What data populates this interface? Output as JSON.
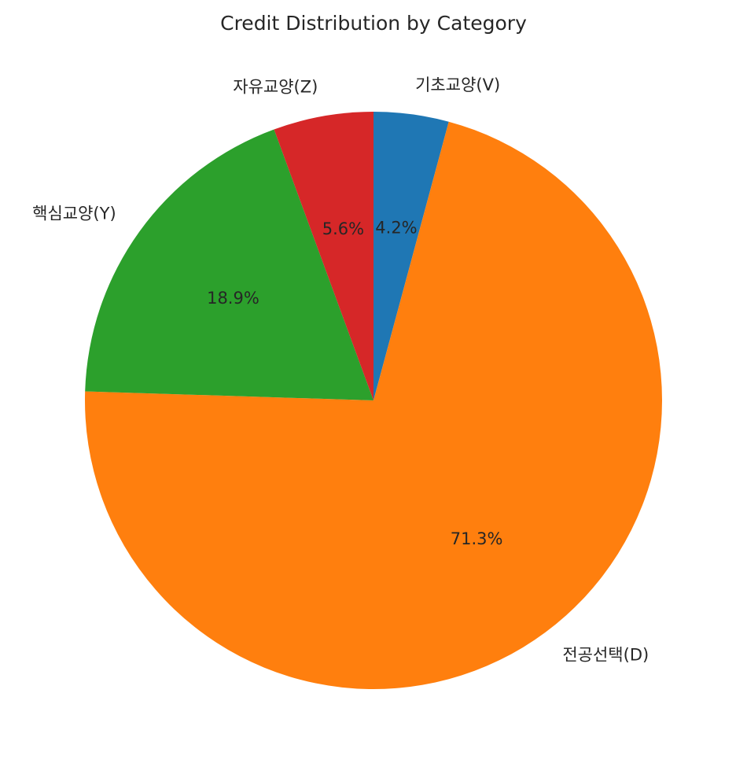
{
  "chart_data": {
    "type": "pie",
    "title": "Credit Distribution by Category",
    "start_angle_deg": 90,
    "direction": "clockwise",
    "slices": [
      {
        "label": "기초교양(V)",
        "value": 4.2,
        "pct_label": "4.2%",
        "color": "#1f77b4"
      },
      {
        "label": "전공선택(D)",
        "value": 71.3,
        "pct_label": "71.3%",
        "color": "#ff7f0e"
      },
      {
        "label": "핵심교양(Y)",
        "value": 18.9,
        "pct_label": "18.9%",
        "color": "#2ca02c"
      },
      {
        "label": "자유교양(Z)",
        "value": 5.6,
        "pct_label": "5.6%",
        "color": "#d62728"
      }
    ]
  }
}
